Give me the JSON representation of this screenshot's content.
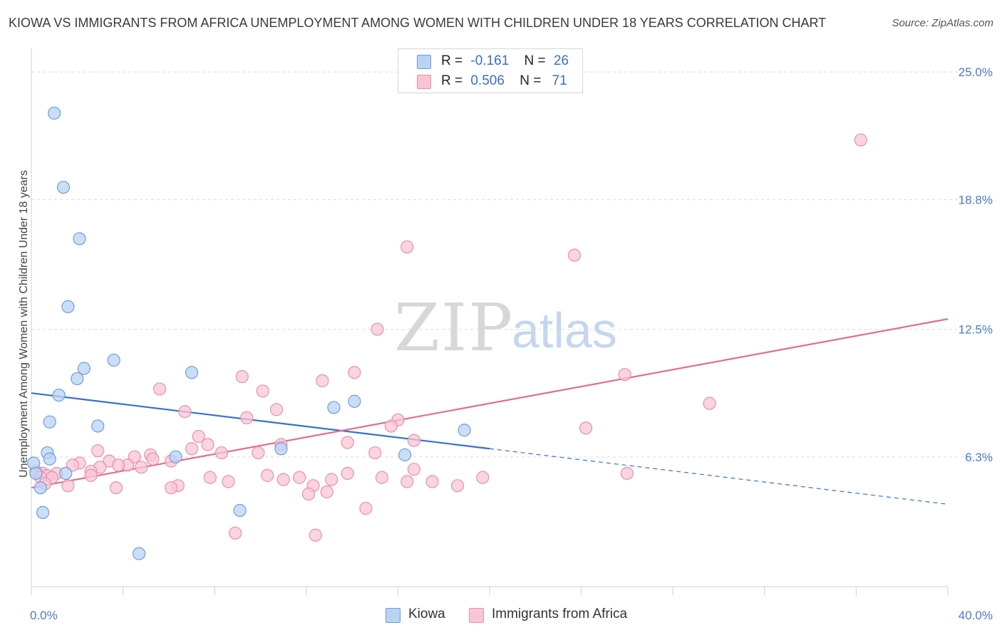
{
  "header": {
    "title": "KIOWA VS IMMIGRANTS FROM AFRICA UNEMPLOYMENT AMONG WOMEN WITH CHILDREN UNDER 18 YEARS CORRELATION CHART",
    "source": "Source: ZipAtlas.com"
  },
  "legend": {
    "r_label": "R =",
    "n_label": "N =",
    "kiowa": {
      "r": "-0.161",
      "n": "26"
    },
    "africa": {
      "r": "0.506",
      "n": "71"
    }
  },
  "watermark": {
    "zip": "ZIP",
    "atlas": "atlas"
  },
  "colors": {
    "kiowa_fill": "#b9d3f5",
    "kiowa_stroke": "#6d9de0",
    "kiowa_line": "#3570d6",
    "africa_fill": "#f8c5d4",
    "africa_stroke": "#eb8fab",
    "africa_line": "#e36b93"
  },
  "chart_data": {
    "type": "scatter",
    "title": "KIOWA VS IMMIGRANTS FROM AFRICA UNEMPLOYMENT AMONG WOMEN WITH CHILDREN UNDER 18 YEARS CORRELATION CHART",
    "xlabel": "",
    "ylabel": "Unemployment Among Women with Children Under 18 years",
    "xlim": [
      0,
      40
    ],
    "ylim": [
      0,
      25.8
    ],
    "x_tick_labels": [
      "0.0%",
      "40.0%"
    ],
    "y_ticks": [
      6.3,
      12.5,
      18.8,
      25.0
    ],
    "y_tick_labels": [
      "6.3%",
      "12.5%",
      "18.8%",
      "25.0%"
    ],
    "grid": true,
    "legend_position": "bottom-center",
    "series": [
      {
        "name": "Kiowa",
        "points": [
          [
            1.0,
            23.0
          ],
          [
            1.4,
            19.4
          ],
          [
            2.1,
            16.9
          ],
          [
            1.6,
            13.6
          ],
          [
            3.6,
            11.0
          ],
          [
            2.3,
            10.6
          ],
          [
            7.0,
            10.4
          ],
          [
            2.0,
            10.1
          ],
          [
            1.2,
            9.3
          ],
          [
            14.1,
            9.0
          ],
          [
            13.2,
            8.7
          ],
          [
            0.8,
            8.0
          ],
          [
            2.9,
            7.8
          ],
          [
            18.9,
            7.6
          ],
          [
            0.7,
            6.5
          ],
          [
            10.9,
            6.7
          ],
          [
            6.3,
            6.3
          ],
          [
            0.8,
            6.2
          ],
          [
            16.3,
            6.4
          ],
          [
            0.1,
            6.0
          ],
          [
            0.2,
            5.5
          ],
          [
            1.5,
            5.5
          ],
          [
            0.4,
            4.8
          ],
          [
            0.5,
            3.6
          ],
          [
            9.1,
            3.7
          ],
          [
            4.7,
            1.6
          ]
        ],
        "trend_solid": [
          [
            0,
            9.4
          ],
          [
            20,
            6.7
          ]
        ],
        "trend_dashed": [
          [
            20,
            6.7
          ],
          [
            40,
            4.0
          ]
        ]
      },
      {
        "name": "Immigrants from Africa",
        "points": [
          [
            36.2,
            21.7
          ],
          [
            16.4,
            16.5
          ],
          [
            23.7,
            16.1
          ],
          [
            15.1,
            12.5
          ],
          [
            25.9,
            10.3
          ],
          [
            14.1,
            10.4
          ],
          [
            9.2,
            10.2
          ],
          [
            12.7,
            10.0
          ],
          [
            5.6,
            9.6
          ],
          [
            10.1,
            9.5
          ],
          [
            29.6,
            8.9
          ],
          [
            10.7,
            8.6
          ],
          [
            6.7,
            8.5
          ],
          [
            9.4,
            8.2
          ],
          [
            16.0,
            8.1
          ],
          [
            15.7,
            7.8
          ],
          [
            24.2,
            7.7
          ],
          [
            7.3,
            7.3
          ],
          [
            16.7,
            7.1
          ],
          [
            13.8,
            7.0
          ],
          [
            7.7,
            6.9
          ],
          [
            10.9,
            6.9
          ],
          [
            7.0,
            6.7
          ],
          [
            2.9,
            6.6
          ],
          [
            9.9,
            6.5
          ],
          [
            8.3,
            6.5
          ],
          [
            5.2,
            6.4
          ],
          [
            15.0,
            6.5
          ],
          [
            4.5,
            6.3
          ],
          [
            3.4,
            6.1
          ],
          [
            6.1,
            6.1
          ],
          [
            5.3,
            6.2
          ],
          [
            2.1,
            6.0
          ],
          [
            4.2,
            5.9
          ],
          [
            3.0,
            5.8
          ],
          [
            4.8,
            5.8
          ],
          [
            3.8,
            5.9
          ],
          [
            1.8,
            5.9
          ],
          [
            16.7,
            5.7
          ],
          [
            2.6,
            5.6
          ],
          [
            0.2,
            5.6
          ],
          [
            0.5,
            5.5
          ],
          [
            1.1,
            5.5
          ],
          [
            0.7,
            5.4
          ],
          [
            0.9,
            5.3
          ],
          [
            13.8,
            5.5
          ],
          [
            2.6,
            5.4
          ],
          [
            10.3,
            5.4
          ],
          [
            26.0,
            5.5
          ],
          [
            0.4,
            5.3
          ],
          [
            11.7,
            5.3
          ],
          [
            7.8,
            5.3
          ],
          [
            11.0,
            5.2
          ],
          [
            15.3,
            5.3
          ],
          [
            19.7,
            5.3
          ],
          [
            13.1,
            5.2
          ],
          [
            17.5,
            5.1
          ],
          [
            16.4,
            5.1
          ],
          [
            8.6,
            5.1
          ],
          [
            12.3,
            4.9
          ],
          [
            18.6,
            4.9
          ],
          [
            1.6,
            4.9
          ],
          [
            0.6,
            5.0
          ],
          [
            6.4,
            4.9
          ],
          [
            6.1,
            4.8
          ],
          [
            3.7,
            4.8
          ],
          [
            12.1,
            4.5
          ],
          [
            12.9,
            4.6
          ],
          [
            14.6,
            3.8
          ],
          [
            8.9,
            2.6
          ],
          [
            12.4,
            2.5
          ]
        ],
        "trend_solid": [
          [
            0,
            4.8
          ],
          [
            40,
            13.0
          ]
        ]
      }
    ]
  }
}
